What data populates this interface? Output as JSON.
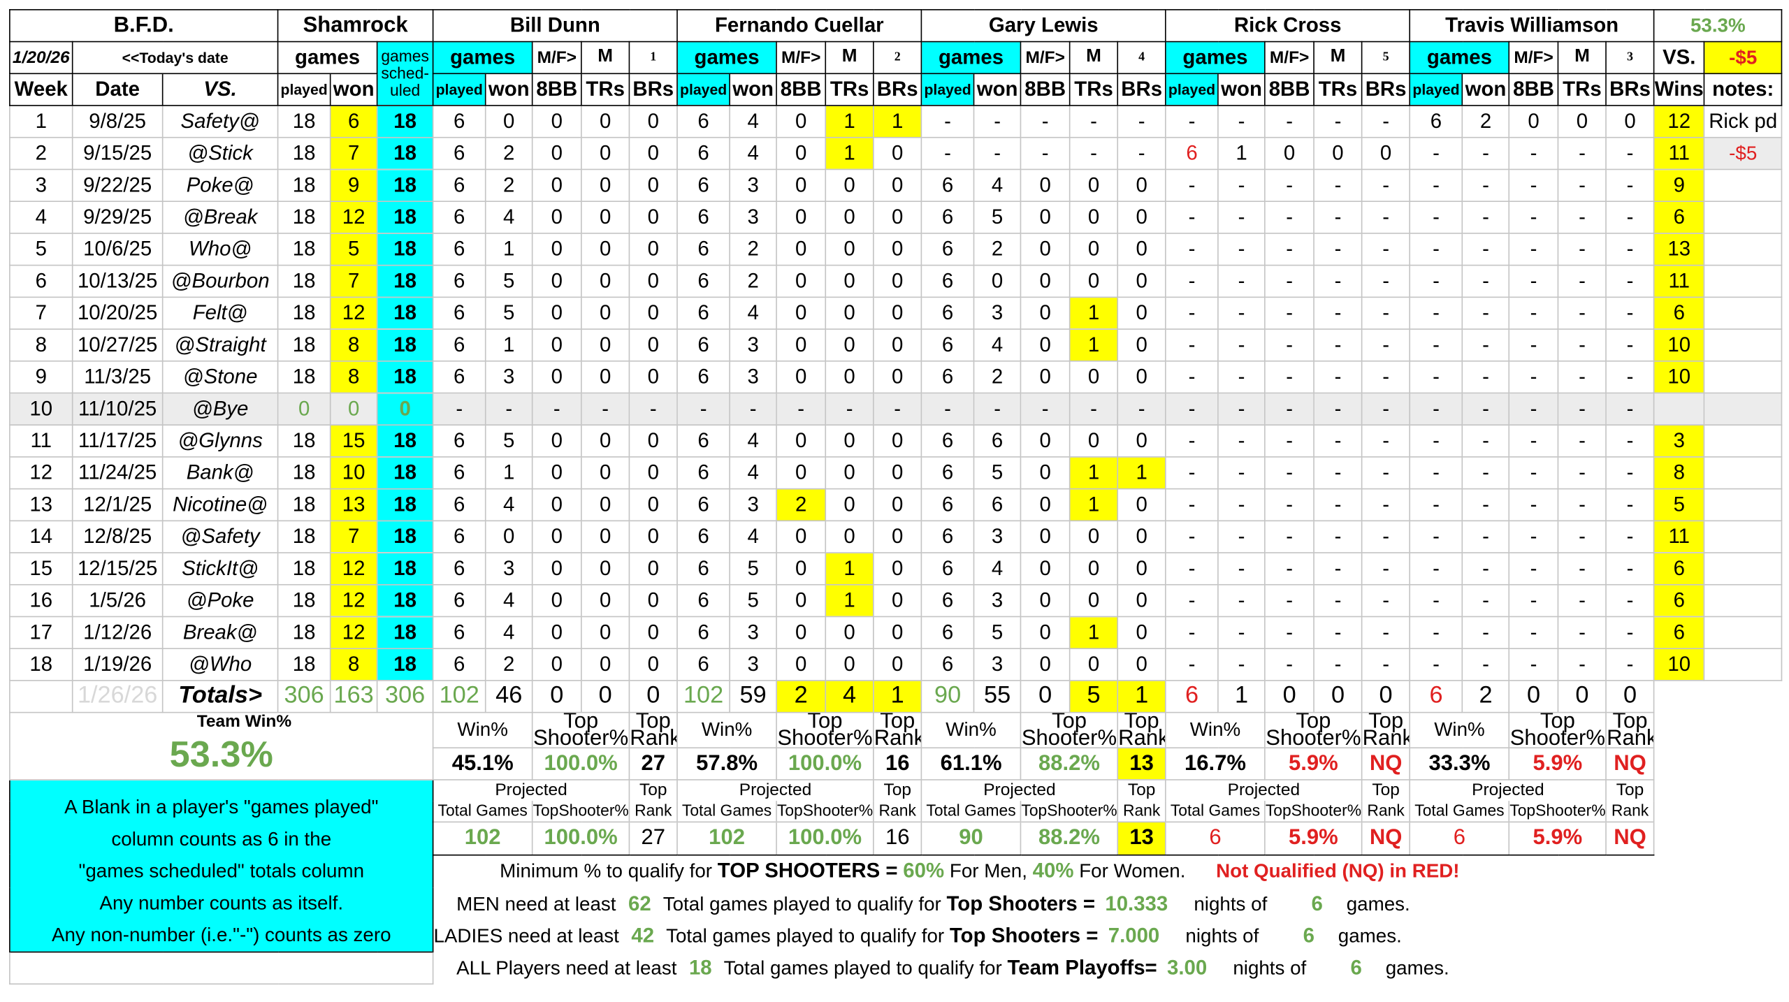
{
  "header": {
    "title": "B.F.D.",
    "team": "Shamrock",
    "players": [
      "Bill Dunn",
      "Fernando Cuellar",
      "Gary Lewis",
      "Rick Cross",
      "Travis Williamson"
    ],
    "team_win_pct": "53.3%",
    "today": "1/20/26",
    "today_label": "<<Today's date",
    "games": "games",
    "games_scheduled": "games sched-uled",
    "mf": "M/F>",
    "player_gender": [
      "M",
      "M",
      "M",
      "M",
      "M"
    ],
    "player_numbers": [
      1,
      2,
      4,
      5,
      3
    ],
    "vs_label": "VS.",
    "fee": "-$5",
    "columns": [
      "Week",
      "Date",
      "VS.",
      "played",
      "won",
      "8BB",
      "TRs",
      "BRs",
      "Wins",
      "notes:"
    ]
  },
  "rows": [
    [
      1,
      "9/8/25",
      "Safety@",
      18,
      6,
      18,
      6,
      0,
      0,
      0,
      0,
      6,
      4,
      0,
      1,
      1,
      "-",
      "-",
      "-",
      "-",
      "-",
      "-",
      "-",
      "-",
      "-",
      "-",
      6,
      2,
      0,
      0,
      0,
      12,
      "Rick pd"
    ],
    [
      2,
      "9/15/25",
      "@Stick",
      18,
      7,
      18,
      6,
      2,
      0,
      0,
      0,
      6,
      4,
      0,
      1,
      0,
      "-",
      "-",
      "-",
      "-",
      "-",
      6,
      1,
      0,
      0,
      0,
      "-",
      "-",
      "-",
      "-",
      "-",
      11,
      "-$5"
    ],
    [
      3,
      "9/22/25",
      "Poke@",
      18,
      9,
      18,
      6,
      2,
      0,
      0,
      0,
      6,
      3,
      0,
      0,
      0,
      6,
      4,
      0,
      0,
      0,
      "-",
      "-",
      "-",
      "-",
      "-",
      "-",
      "-",
      "-",
      "-",
      "-",
      9,
      null
    ],
    [
      4,
      "9/29/25",
      "@Break",
      18,
      12,
      18,
      6,
      4,
      0,
      0,
      0,
      6,
      3,
      0,
      0,
      0,
      6,
      5,
      0,
      0,
      0,
      "-",
      "-",
      "-",
      "-",
      "-",
      "-",
      "-",
      "-",
      "-",
      "-",
      6,
      null
    ],
    [
      5,
      "10/6/25",
      "Who@",
      18,
      5,
      18,
      6,
      1,
      0,
      0,
      0,
      6,
      2,
      0,
      0,
      0,
      6,
      2,
      0,
      0,
      0,
      "-",
      "-",
      "-",
      "-",
      "-",
      "-",
      "-",
      "-",
      "-",
      "-",
      13,
      null
    ],
    [
      6,
      "10/13/25",
      "@Bourbon",
      18,
      7,
      18,
      6,
      5,
      0,
      0,
      0,
      6,
      2,
      0,
      0,
      0,
      6,
      0,
      0,
      0,
      0,
      "-",
      "-",
      "-",
      "-",
      "-",
      "-",
      "-",
      "-",
      "-",
      "-",
      11,
      null
    ],
    [
      7,
      "10/20/25",
      "Felt@",
      18,
      12,
      18,
      6,
      5,
      0,
      0,
      0,
      6,
      4,
      0,
      0,
      0,
      6,
      3,
      0,
      1,
      0,
      "-",
      "-",
      "-",
      "-",
      "-",
      "-",
      "-",
      "-",
      "-",
      "-",
      6,
      null
    ],
    [
      8,
      "10/27/25",
      "@Straight",
      18,
      8,
      18,
      6,
      1,
      0,
      0,
      0,
      6,
      3,
      0,
      0,
      0,
      6,
      4,
      0,
      1,
      0,
      "-",
      "-",
      "-",
      "-",
      "-",
      "-",
      "-",
      "-",
      "-",
      "-",
      10,
      null
    ],
    [
      9,
      "11/3/25",
      "@Stone",
      18,
      8,
      18,
      6,
      3,
      0,
      0,
      0,
      6,
      3,
      0,
      0,
      0,
      6,
      2,
      0,
      0,
      0,
      "-",
      "-",
      "-",
      "-",
      "-",
      "-",
      "-",
      "-",
      "-",
      "-",
      10,
      null
    ],
    [
      10,
      "11/10/25",
      "@Bye",
      0,
      0,
      0,
      "-",
      "-",
      "-",
      "-",
      "-",
      "-",
      "-",
      "-",
      "-",
      "-",
      "-",
      "-",
      "-",
      "-",
      "-",
      "-",
      "-",
      "-",
      "-",
      "-",
      "-",
      "-",
      "-",
      "-",
      "-",
      null,
      null
    ],
    [
      11,
      "11/17/25",
      "@Glynns",
      18,
      15,
      18,
      6,
      5,
      0,
      0,
      0,
      6,
      4,
      0,
      0,
      0,
      6,
      6,
      0,
      0,
      0,
      "-",
      "-",
      "-",
      "-",
      "-",
      "-",
      "-",
      "-",
      "-",
      "-",
      3,
      null
    ],
    [
      12,
      "11/24/25",
      "Bank@",
      18,
      10,
      18,
      6,
      1,
      0,
      0,
      0,
      6,
      4,
      0,
      0,
      0,
      6,
      5,
      0,
      1,
      1,
      "-",
      "-",
      "-",
      "-",
      "-",
      "-",
      "-",
      "-",
      "-",
      "-",
      8,
      null
    ],
    [
      13,
      "12/1/25",
      "Nicotine@",
      18,
      13,
      18,
      6,
      4,
      0,
      0,
      0,
      6,
      3,
      2,
      0,
      0,
      6,
      6,
      0,
      1,
      0,
      "-",
      "-",
      "-",
      "-",
      "-",
      "-",
      "-",
      "-",
      "-",
      "-",
      5,
      null
    ],
    [
      14,
      "12/8/25",
      "@Safety",
      18,
      7,
      18,
      6,
      0,
      0,
      0,
      0,
      6,
      4,
      0,
      0,
      0,
      6,
      3,
      0,
      0,
      0,
      "-",
      "-",
      "-",
      "-",
      "-",
      "-",
      "-",
      "-",
      "-",
      "-",
      11,
      null
    ],
    [
      15,
      "12/15/25",
      "StickIt@",
      18,
      12,
      18,
      6,
      3,
      0,
      0,
      0,
      6,
      5,
      0,
      1,
      0,
      6,
      4,
      0,
      0,
      0,
      "-",
      "-",
      "-",
      "-",
      "-",
      "-",
      "-",
      "-",
      "-",
      "-",
      6,
      null
    ],
    [
      16,
      "1/5/26",
      "@Poke",
      18,
      12,
      18,
      6,
      4,
      0,
      0,
      0,
      6,
      5,
      0,
      1,
      0,
      6,
      3,
      0,
      0,
      0,
      "-",
      "-",
      "-",
      "-",
      "-",
      "-",
      "-",
      "-",
      "-",
      "-",
      6,
      null
    ],
    [
      17,
      "1/12/26",
      "Break@",
      18,
      12,
      18,
      6,
      4,
      0,
      0,
      0,
      6,
      3,
      0,
      0,
      0,
      6,
      5,
      0,
      1,
      0,
      "-",
      "-",
      "-",
      "-",
      "-",
      "-",
      "-",
      "-",
      "-",
      "-",
      6,
      null
    ],
    [
      18,
      "1/19/26",
      "@Who",
      18,
      8,
      18,
      6,
      2,
      0,
      0,
      0,
      6,
      3,
      0,
      0,
      0,
      6,
      3,
      0,
      0,
      0,
      "-",
      "-",
      "-",
      "-",
      "-",
      "-",
      "-",
      "-",
      "-",
      "-",
      10,
      null
    ]
  ],
  "totals": [
    null,
    "1/26/26",
    "Totals>",
    306,
    163,
    306,
    102,
    46,
    0,
    0,
    0,
    102,
    59,
    2,
    4,
    1,
    90,
    55,
    0,
    5,
    1,
    6,
    1,
    0,
    0,
    0,
    6,
    2,
    0,
    0,
    0
  ],
  "summary": {
    "team_win_label": "Team Win%",
    "team_win": "53.3%",
    "win_label": "Win%",
    "top_shooter_label": "Top Shooter%",
    "top_rank_label": "Top Rank",
    "players": [
      {
        "win": "45.1%",
        "top_shooter": "100.0%",
        "rank": 27
      },
      {
        "win": "57.8%",
        "top_shooter": "100.0%",
        "rank": 16
      },
      {
        "win": "61.1%",
        "top_shooter": "88.2%",
        "rank": 13
      },
      {
        "win": "16.7%",
        "top_shooter": "5.9%",
        "rank": "NQ"
      },
      {
        "win": "33.3%",
        "top_shooter": "5.9%",
        "rank": "NQ"
      }
    ]
  },
  "projected": {
    "label": "Projected",
    "top_label": "Top",
    "total_games_label": "Total Games",
    "top_shooter_label": "TopShooter%",
    "rank_label": "Rank",
    "players": [
      {
        "total_games": 102,
        "top_shooter": "100.0%",
        "rank": 27
      },
      {
        "total_games": 102,
        "top_shooter": "100.0%",
        "rank": 16
      },
      {
        "total_games": 90,
        "top_shooter": "88.2%",
        "rank": 13
      },
      {
        "total_games": 6,
        "top_shooter": "5.9%",
        "rank": "NQ"
      },
      {
        "total_games": 6,
        "top_shooter": "5.9%",
        "rank": "NQ"
      }
    ]
  },
  "note_lines": [
    "A Blank in a player's \"games played\"",
    "column counts as 6 in the",
    "\"games scheduled\" totals column",
    "Any number counts as itself.",
    "Any non-number (i.e.\"-\") counts as zero"
  ],
  "qualify": {
    "text": "Minimum % to qualify for",
    "label": "TOP SHOOTERS =",
    "men_pct": "60%",
    "men_label": "For Men,",
    "women_pct": "40%",
    "women_label": "For Women.",
    "note": "Not Qualified (NQ) in RED!"
  },
  "requirements": [
    {
      "text": "MEN need at least",
      "games": 62,
      "mid": "Total games played to qualify for",
      "label": "Top Shooters =",
      "nights": "10.333",
      "nights_label": "nights of",
      "per_night": 6,
      "end": "games."
    },
    {
      "text": "LADIES need at least",
      "games": 42,
      "mid": "Total games played to qualify for",
      "label": "Top Shooters =",
      "nights": "7.000",
      "nights_label": "nights of",
      "per_night": 6,
      "end": "games."
    },
    {
      "text": "ALL Players need at least",
      "games": 18,
      "mid": "Total games played to qualify for",
      "label": "Team Playoffs=",
      "nights": "3.00",
      "nights_label": "nights of",
      "per_night": 6,
      "end": "games."
    }
  ]
}
